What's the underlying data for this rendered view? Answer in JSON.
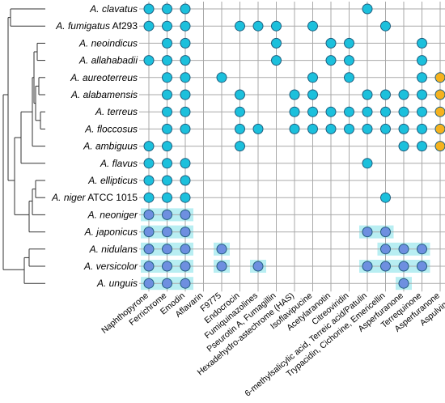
{
  "colors": {
    "teal": "#1cc0dc",
    "blue": "#6e8fe0",
    "orange": "#f5b21e",
    "highlight": "#b8eef2",
    "grid": "#a9a9a9"
  },
  "species": [
    {
      "genus": "A.",
      "name": "clavatus",
      "suffix": ""
    },
    {
      "genus": "A.",
      "name": "fumigatus",
      "suffix": "Af293"
    },
    {
      "genus": "A.",
      "name": "neoindicus",
      "suffix": ""
    },
    {
      "genus": "A.",
      "name": "allahabadii",
      "suffix": ""
    },
    {
      "genus": "A.",
      "name": "aureoterreus",
      "suffix": ""
    },
    {
      "genus": "A.",
      "name": "alabamensis",
      "suffix": ""
    },
    {
      "genus": "A.",
      "name": "terreus",
      "suffix": ""
    },
    {
      "genus": "A.",
      "name": "floccosus",
      "suffix": ""
    },
    {
      "genus": "A.",
      "name": "ambiguus",
      "suffix": ""
    },
    {
      "genus": "A.",
      "name": "flavus",
      "suffix": ""
    },
    {
      "genus": "A.",
      "name": "ellipticus",
      "suffix": ""
    },
    {
      "genus": "A.",
      "name": "niger",
      "suffix": "ATCC 1015"
    },
    {
      "genus": "A.",
      "name": "neoniger",
      "suffix": ""
    },
    {
      "genus": "A.",
      "name": "japonicus",
      "suffix": ""
    },
    {
      "genus": "A.",
      "name": "nidulans",
      "suffix": ""
    },
    {
      "genus": "A.",
      "name": "versicolor",
      "suffix": ""
    },
    {
      "genus": "A.",
      "name": "unguis",
      "suffix": ""
    }
  ],
  "metabolites": [
    "Naphthopyrone",
    "Ferrichrome",
    "Emodin",
    "Aflavarin",
    "F9775",
    "Endocrocin",
    "Fumiquinazolines",
    "Pseurotin A, Fumagillin",
    "Hexadehydro-astechrome (HAS)",
    "Isoflavipucine",
    "Acetylaranotin",
    "Citreoviridin",
    "6-methylsalicylic acid, Terreic acid/Patulin",
    "Trypacidin, Cichorine, Emericellin",
    "Asperfuranone",
    "Terrequinone",
    "Asperfuranone",
    "Aspulvinone"
  ],
  "matrix": [
    "tttbbbbbbbbbtbbbbb",
    "tttbbtttbtbbbtbbbb",
    "bttbbbbtbbttbbbtbb",
    "tttbbbbtbbttbbbtbb",
    "bttbtbbbbtbtbbbtob",
    "bttbbtbbttbbttttob",
    "bttbbtbbttttttttob",
    "bttbbttbttttttttob",
    "ttbbbtbbbbbbbbttob",
    "tttbbbbbbbbbtbbbbb",
    "tttbbbbbbbbbbbbbbb",
    "tttbbbbbbbbbbtbbbb",
    "BBBbbbbbbbbbbbbbbb",
    "BBBbbbbbbbbbBBbbbb",
    "BBBbBbbbbbbbbBBBbb",
    "BBBbBbBbbbbbBBBBbb",
    "BBBbbbbbbbbbbbBbbb"
  ]
}
